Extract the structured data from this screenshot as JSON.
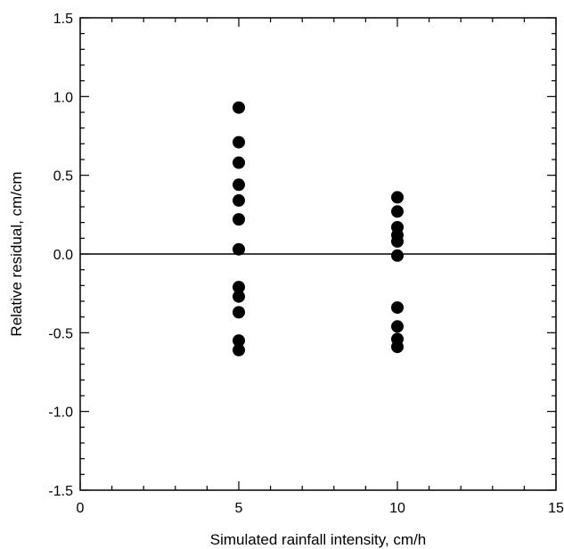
{
  "chart_data": {
    "type": "scatter",
    "xlabel": "Simulated rainfall intensity, cm/h",
    "ylabel": "Relative residual, cm/cm",
    "xlim": [
      0,
      15
    ],
    "ylim": [
      -1.5,
      1.5
    ],
    "x_ticks": [
      0,
      5,
      10,
      15
    ],
    "x_tick_labels": [
      "0",
      "5",
      "10",
      "15"
    ],
    "y_ticks": [
      -1.5,
      -1.0,
      -0.5,
      0.0,
      0.5,
      1.0,
      1.5
    ],
    "y_tick_labels": [
      "-1.5",
      "-1.0",
      "-0.5",
      "0.0",
      "0.5",
      "1.0",
      "1.5"
    ],
    "grid": false,
    "reference_line_y": 0,
    "series": [
      {
        "points": [
          {
            "x": 5,
            "y": 0.93
          },
          {
            "x": 5,
            "y": 0.71
          },
          {
            "x": 5,
            "y": 0.58
          },
          {
            "x": 5,
            "y": 0.44
          },
          {
            "x": 5,
            "y": 0.34
          },
          {
            "x": 5,
            "y": 0.22
          },
          {
            "x": 5,
            "y": 0.03
          },
          {
            "x": 5,
            "y": -0.21
          },
          {
            "x": 5,
            "y": -0.27
          },
          {
            "x": 5,
            "y": -0.37
          },
          {
            "x": 5,
            "y": -0.55
          },
          {
            "x": 5,
            "y": -0.61
          },
          {
            "x": 10,
            "y": 0.36
          },
          {
            "x": 10,
            "y": 0.27
          },
          {
            "x": 10,
            "y": 0.17
          },
          {
            "x": 10,
            "y": 0.12
          },
          {
            "x": 10,
            "y": 0.08
          },
          {
            "x": 10,
            "y": -0.01
          },
          {
            "x": 10,
            "y": -0.34
          },
          {
            "x": 10,
            "y": -0.46
          },
          {
            "x": 10,
            "y": -0.54
          },
          {
            "x": 10,
            "y": -0.59
          }
        ]
      }
    ]
  }
}
